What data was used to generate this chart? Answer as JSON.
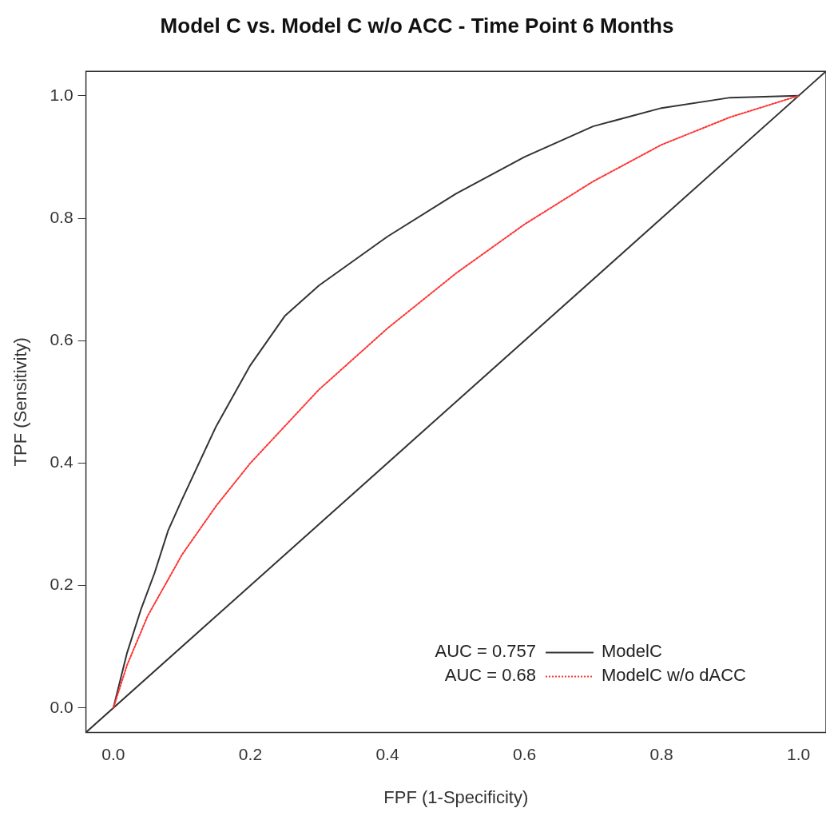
{
  "chart_data": {
    "type": "line",
    "title": "Model C vs. Model C w/o ACC - Time Point 6 Months",
    "xlabel": "FPF (1-Specificity)",
    "ylabel": "TPF (Sensitivity)",
    "xlim": [
      -0.04,
      1.04
    ],
    "ylim": [
      -0.04,
      1.04
    ],
    "xticks": [
      {
        "value": 0,
        "label": "0.0"
      },
      0.2,
      0.4,
      0.6,
      0.8,
      {
        "value": 1,
        "label": "1.0"
      }
    ],
    "yticks": [
      {
        "value": 0,
        "label": "0.0"
      },
      0.2,
      0.4,
      0.6,
      0.8,
      {
        "value": 1,
        "label": "1.0"
      }
    ],
    "grid": false,
    "legend": "bottom right",
    "marker": "none",
    "annotations": [
      "AUC = 0.757",
      "AUC = 0.68"
    ],
    "series": [
      {
        "name": "ModelC",
        "color": "#333333",
        "line_style": "solid",
        "x": [
          0,
          0.02,
          0.04,
          0.06,
          0.08,
          0.1,
          0.15,
          0.2,
          0.25,
          0.3,
          0.4,
          0.5,
          0.6,
          0.7,
          0.8,
          0.9,
          1
        ],
        "values": [
          0,
          0.09,
          0.16,
          0.22,
          0.29,
          0.34,
          0.46,
          0.56,
          0.64,
          0.69,
          0.77,
          0.84,
          0.9,
          0.95,
          0.98,
          0.997,
          1
        ]
      },
      {
        "name": "ModelC w/o dACC",
        "color": "#ff3333",
        "line_style": "dotted",
        "x": [
          0,
          0.02,
          0.05,
          0.1,
          0.15,
          0.2,
          0.3,
          0.4,
          0.5,
          0.6,
          0.7,
          0.8,
          0.9,
          1
        ],
        "values": [
          0,
          0.07,
          0.15,
          0.25,
          0.33,
          0.4,
          0.52,
          0.62,
          0.71,
          0.79,
          0.86,
          0.92,
          0.965,
          1
        ]
      },
      {
        "color": "#333333",
        "line_style": "solid",
        "x": [
          -0.04,
          1.04
        ],
        "values": [
          -0.04,
          1.04
        ]
      }
    ]
  }
}
